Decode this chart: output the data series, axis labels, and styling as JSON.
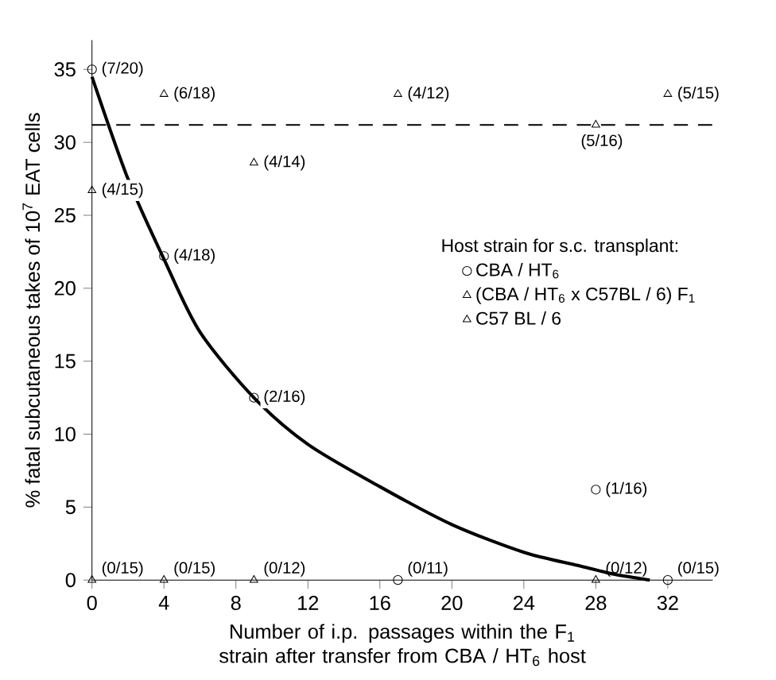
{
  "chart_data": {
    "type": "scatter",
    "xlabel": "Number of i.p. passages within the F$_{1}$ strain after transfer from CBA / HT$_{6}$ host",
    "ylabel": "% fatal subcutaneous takes of 10$^{7}$ EAT cells",
    "legend_title": "Host strain for s.c. transplant:",
    "xlim": [
      0,
      34.5
    ],
    "ylim": [
      0,
      37
    ],
    "xticks": [
      0,
      4,
      8,
      12,
      16,
      20,
      24,
      28,
      32
    ],
    "yticks": [
      0,
      5,
      10,
      15,
      20,
      25,
      30,
      35
    ],
    "legend": "right",
    "series": [
      {
        "name": "CBA / HT$_{6}$",
        "marker": "circle",
        "color": "#000000",
        "x": [
          0,
          4,
          9,
          17,
          28,
          32
        ],
        "values": [
          35,
          22.2,
          12.5,
          0,
          6.2,
          0
        ]
      },
      {
        "name": "(CBA / HT$_{6}$ x C57BL / 6) F$_{1}$",
        "marker": "triangle",
        "color": "#000000",
        "x": [
          0,
          4,
          9,
          17,
          28,
          32
        ],
        "values": [
          26.7,
          33.3,
          28.6,
          33.3,
          31.2,
          33.3
        ]
      },
      {
        "name": "C57 BL / 6",
        "marker": "triangle",
        "color": "#000000",
        "x": [
          0,
          4,
          9,
          28
        ],
        "values": [
          0,
          0,
          0,
          0
        ]
      },
      {
        "type": "line",
        "marker": "none",
        "color": "#000000",
        "x": [
          0,
          2,
          4,
          6,
          9,
          12,
          16,
          20,
          24,
          27,
          29,
          31
        ],
        "values": [
          34.5,
          27.5,
          22,
          17,
          12.5,
          9.3,
          6.4,
          3.8,
          1.9,
          1,
          0.4,
          0
        ]
      }
    ],
    "ref_lines": [
      {
        "axis": "y",
        "value": 31.2,
        "line_style": "dashed",
        "color": "#000000"
      }
    ],
    "annotations": [
      {
        "text": "(7/20)",
        "x": 0,
        "y": 35
      },
      {
        "text": "(4/18)",
        "x": 4,
        "y": 22.2
      },
      {
        "text": "(2/16)",
        "x": 9,
        "y": 12.5
      },
      {
        "text": "(1/16)",
        "x": 28,
        "y": 6.2
      },
      {
        "text": "(4/15)",
        "x": 0,
        "y": 26.7
      },
      {
        "text": "(6/18)",
        "x": 4,
        "y": 33.3
      },
      {
        "text": "(4/14)",
        "x": 9,
        "y": 28.6
      },
      {
        "text": "(4/12)",
        "x": 17,
        "y": 33.3
      },
      {
        "text": "(5/16)",
        "x": 28,
        "y": 31.2
      },
      {
        "text": "(5/15)",
        "x": 32,
        "y": 33.3
      },
      {
        "text": "(0/15)",
        "x": 0,
        "y": 0
      },
      {
        "text": "(0/15)",
        "x": 4,
        "y": 0
      },
      {
        "text": "(0/12)",
        "x": 9,
        "y": 0
      },
      {
        "text": "(0/11)",
        "x": 17,
        "y": 0
      },
      {
        "text": "(0/12)",
        "x": 28,
        "y": 0
      },
      {
        "text": "(0/15)",
        "x": 32,
        "y": 0
      }
    ]
  }
}
